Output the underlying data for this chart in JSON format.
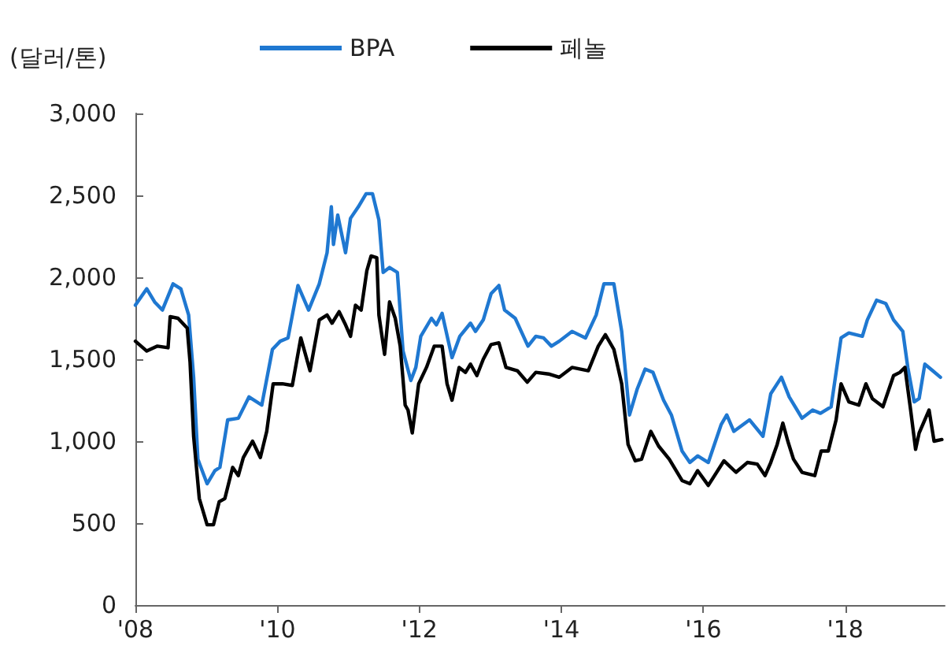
{
  "chart_data": {
    "type": "line",
    "ylabel": "(달러/톤)",
    "legend": "top",
    "grid": false,
    "marker": "none",
    "line_style": "solid",
    "xlim": [
      2008,
      2019.4
    ],
    "xticks": [
      {
        "value": 2008,
        "label": "'08"
      },
      {
        "value": 2010,
        "label": "'10"
      },
      {
        "value": 2012,
        "label": "'12"
      },
      {
        "value": 2014,
        "label": "'14"
      },
      {
        "value": 2016,
        "label": "'16"
      },
      {
        "value": 2018,
        "label": "'18"
      }
    ],
    "ylim": [
      0,
      3000
    ],
    "yticks": [
      {
        "value": 0,
        "label": "0"
      },
      {
        "value": 500,
        "label": "500"
      },
      {
        "value": 1000,
        "label": "1,000"
      },
      {
        "value": 1500,
        "label": "1,500"
      },
      {
        "value": 2000,
        "label": "2,000"
      },
      {
        "value": 2500,
        "label": "2,500"
      },
      {
        "value": 3000,
        "label": "3,000"
      }
    ],
    "series": [
      {
        "name": "BPA",
        "color": "#1f78d1",
        "x": [
          2008.0,
          2008.16,
          2008.27,
          2008.38,
          2008.53,
          2008.64,
          2008.75,
          2008.82,
          2008.88,
          2009.01,
          2009.12,
          2009.19,
          2009.3,
          2009.45,
          2009.6,
          2009.78,
          2009.93,
          2010.04,
          2010.15,
          2010.29,
          2010.44,
          2010.59,
          2010.7,
          2010.76,
          2010.79,
          2010.85,
          2010.96,
          2011.03,
          2011.14,
          2011.25,
          2011.34,
          2011.43,
          2011.49,
          2011.58,
          2011.69,
          2011.77,
          2011.88,
          2011.95,
          2012.02,
          2012.17,
          2012.24,
          2012.32,
          2012.46,
          2012.57,
          2012.72,
          2012.79,
          2012.9,
          2013.01,
          2013.12,
          2013.2,
          2013.35,
          2013.53,
          2013.64,
          2013.75,
          2013.86,
          2013.97,
          2014.15,
          2014.34,
          2014.49,
          2014.6,
          2014.74,
          2014.85,
          2014.96,
          2015.07,
          2015.18,
          2015.29,
          2015.44,
          2015.55,
          2015.7,
          2015.81,
          2015.92,
          2016.07,
          2016.25,
          2016.33,
          2016.43,
          2016.65,
          2016.84,
          2016.95,
          2017.1,
          2017.21,
          2017.39,
          2017.54,
          2017.65,
          2017.8,
          2017.94,
          2018.05,
          2018.24,
          2018.31,
          2018.44,
          2018.57,
          2018.68,
          2018.81,
          2018.88,
          2018.97,
          2019.04,
          2019.12,
          2019.23,
          2019.34
        ],
        "values": [
          1830,
          1930,
          1850,
          1800,
          1960,
          1930,
          1770,
          1390,
          890,
          740,
          820,
          840,
          1130,
          1140,
          1270,
          1220,
          1560,
          1610,
          1630,
          1950,
          1800,
          1960,
          2150,
          2430,
          2200,
          2380,
          2150,
          2360,
          2430,
          2510,
          2510,
          2350,
          2030,
          2060,
          2030,
          1550,
          1370,
          1450,
          1640,
          1750,
          1710,
          1780,
          1510,
          1640,
          1720,
          1670,
          1740,
          1900,
          1950,
          1800,
          1750,
          1580,
          1640,
          1630,
          1580,
          1610,
          1670,
          1630,
          1770,
          1960,
          1960,
          1670,
          1160,
          1320,
          1440,
          1420,
          1250,
          1160,
          940,
          870,
          910,
          870,
          1100,
          1160,
          1060,
          1130,
          1030,
          1290,
          1390,
          1270,
          1140,
          1190,
          1170,
          1210,
          1630,
          1660,
          1640,
          1740,
          1860,
          1840,
          1740,
          1670,
          1450,
          1240,
          1260,
          1470,
          1430,
          1390
        ]
      },
      {
        "name": "페놀",
        "color": "#000000",
        "x": [
          2008.0,
          2008.16,
          2008.31,
          2008.46,
          2008.49,
          2008.6,
          2008.73,
          2008.77,
          2008.82,
          2008.9,
          2009.01,
          2009.1,
          2009.18,
          2009.26,
          2009.37,
          2009.45,
          2009.52,
          2009.65,
          2009.76,
          2009.85,
          2009.94,
          2010.07,
          2010.21,
          2010.33,
          2010.46,
          2010.59,
          2010.7,
          2010.77,
          2010.87,
          2010.96,
          2011.03,
          2011.1,
          2011.18,
          2011.26,
          2011.32,
          2011.4,
          2011.43,
          2011.51,
          2011.58,
          2011.66,
          2011.73,
          2011.8,
          2011.84,
          2011.9,
          2011.99,
          2012.1,
          2012.21,
          2012.32,
          2012.39,
          2012.46,
          2012.56,
          2012.65,
          2012.72,
          2012.81,
          2012.9,
          2013.01,
          2013.12,
          2013.22,
          2013.38,
          2013.52,
          2013.64,
          2013.82,
          2013.97,
          2014.15,
          2014.38,
          2014.52,
          2014.62,
          2014.74,
          2014.85,
          2014.94,
          2015.04,
          2015.13,
          2015.26,
          2015.37,
          2015.52,
          2015.7,
          2015.81,
          2015.92,
          2016.07,
          2016.29,
          2016.46,
          2016.62,
          2016.76,
          2016.87,
          2016.95,
          2017.04,
          2017.12,
          2017.19,
          2017.27,
          2017.39,
          2017.57,
          2017.66,
          2017.76,
          2017.87,
          2017.94,
          2018.05,
          2018.19,
          2018.29,
          2018.38,
          2018.53,
          2018.68,
          2018.77,
          2018.84,
          2018.92,
          2018.99,
          2019.04,
          2019.18,
          2019.25,
          2019.36
        ],
        "values": [
          1610,
          1550,
          1580,
          1570,
          1760,
          1750,
          1690,
          1480,
          1030,
          650,
          490,
          490,
          630,
          650,
          840,
          790,
          900,
          1000,
          900,
          1060,
          1350,
          1350,
          1340,
          1630,
          1430,
          1740,
          1770,
          1720,
          1790,
          1710,
          1640,
          1830,
          1800,
          2040,
          2130,
          2120,
          1770,
          1530,
          1850,
          1750,
          1580,
          1220,
          1190,
          1050,
          1350,
          1450,
          1580,
          1580,
          1350,
          1250,
          1450,
          1420,
          1470,
          1400,
          1500,
          1590,
          1600,
          1450,
          1430,
          1360,
          1420,
          1410,
          1390,
          1450,
          1430,
          1580,
          1650,
          1560,
          1350,
          980,
          880,
          890,
          1060,
          970,
          890,
          760,
          740,
          820,
          730,
          880,
          810,
          870,
          860,
          790,
          870,
          980,
          1110,
          1000,
          890,
          810,
          790,
          940,
          940,
          1130,
          1350,
          1240,
          1220,
          1350,
          1260,
          1210,
          1400,
          1420,
          1450,
          1190,
          950,
          1050,
          1190,
          1000,
          1010
        ]
      }
    ]
  }
}
